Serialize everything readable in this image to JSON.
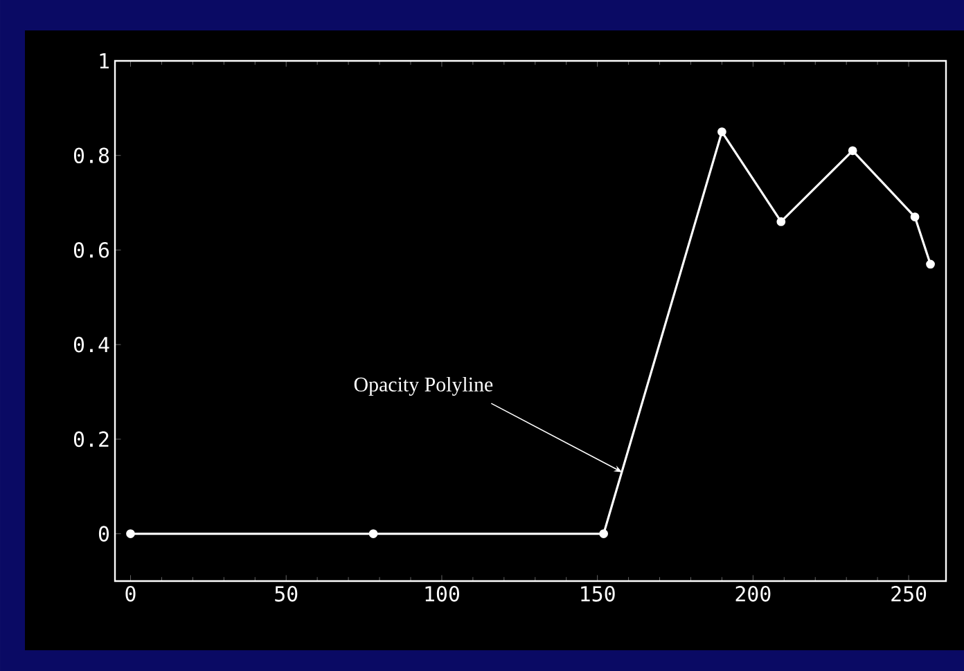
{
  "chart_data": {
    "type": "line",
    "x": [
      0,
      78,
      152,
      190,
      209,
      232,
      252,
      257
    ],
    "series": [
      {
        "color": "#ffffff",
        "values": [
          0,
          0,
          0,
          0.85,
          0.66,
          0.81,
          0.67,
          0.57
        ]
      }
    ],
    "marker": "circle",
    "line_style": "solid",
    "xlim": [
      -5,
      262
    ],
    "ylim": [
      -0.1,
      1
    ],
    "xticks": [
      0,
      50,
      100,
      150,
      200,
      250
    ],
    "yticks": [
      0,
      0.2,
      0.4,
      0.6,
      0.8,
      1
    ],
    "annotations": [
      {
        "text": "Opacity Polyline",
        "x": 158,
        "y": 0.13
      }
    ]
  }
}
